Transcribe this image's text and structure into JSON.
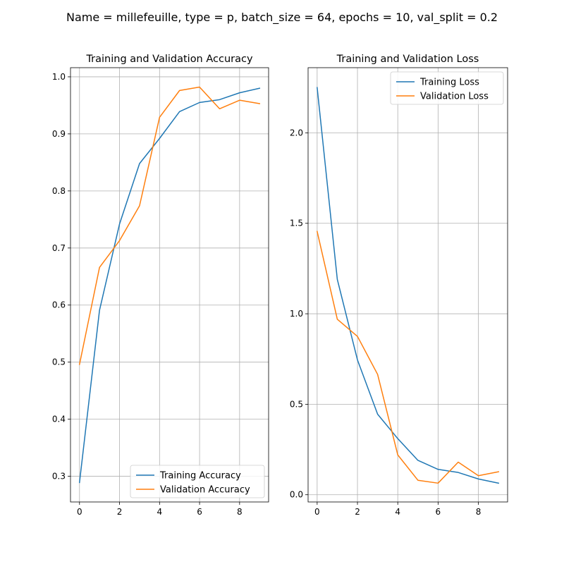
{
  "figure": {
    "suptitle": "Name = millefeuille, type = p, batch_size = 64, epochs = 10, val_split = 0.2"
  },
  "colors": {
    "training": "#1f77b4",
    "validation": "#ff7f0e",
    "grid": "#b0b0b0",
    "axes": "#000000"
  },
  "chart_data": [
    {
      "type": "line",
      "title": "Training and Validation Accuracy",
      "xlabel": "",
      "ylabel": "",
      "x": [
        0,
        1,
        2,
        3,
        4,
        5,
        6,
        7,
        8,
        9
      ],
      "xlim": [
        -0.45,
        9.45
      ],
      "ylim": [
        0.255,
        1.016
      ],
      "xticks": [
        0,
        2,
        4,
        6,
        8
      ],
      "yticks": [
        0.3,
        0.4,
        0.5,
        0.6,
        0.7,
        0.8,
        0.9,
        1.0
      ],
      "ytick_labels": [
        "0.3",
        "0.4",
        "0.5",
        "0.6",
        "0.7",
        "0.8",
        "0.9",
        "1.0"
      ],
      "grid": true,
      "legend_position": "lower-right",
      "series": [
        {
          "name": "Training Accuracy",
          "color": "#1f77b4",
          "values": [
            0.289,
            0.591,
            0.742,
            0.848,
            0.892,
            0.939,
            0.955,
            0.96,
            0.972,
            0.98
          ]
        },
        {
          "name": "Validation Accuracy",
          "color": "#ff7f0e",
          "values": [
            0.496,
            0.666,
            0.713,
            0.774,
            0.929,
            0.976,
            0.982,
            0.944,
            0.959,
            0.953
          ]
        }
      ]
    },
    {
      "type": "line",
      "title": "Training and Validation Loss",
      "xlabel": "",
      "ylabel": "",
      "x": [
        0,
        1,
        2,
        3,
        4,
        5,
        6,
        7,
        8,
        9
      ],
      "xlim": [
        -0.45,
        9.45
      ],
      "ylim": [
        -0.04,
        2.36
      ],
      "xticks": [
        0,
        2,
        4,
        6,
        8
      ],
      "yticks": [
        0.0,
        0.5,
        1.0,
        1.5,
        2.0
      ],
      "ytick_labels": [
        "0.0",
        "0.5",
        "1.0",
        "1.5",
        "2.0"
      ],
      "grid": true,
      "legend_position": "top-right",
      "series": [
        {
          "name": "Training Loss",
          "color": "#1f77b4",
          "values": [
            2.25,
            1.19,
            0.745,
            0.445,
            0.31,
            0.19,
            0.14,
            0.123,
            0.087,
            0.064
          ]
        },
        {
          "name": "Validation Loss",
          "color": "#ff7f0e",
          "values": [
            1.455,
            0.97,
            0.875,
            0.665,
            0.22,
            0.08,
            0.064,
            0.18,
            0.105,
            0.127
          ]
        }
      ]
    }
  ]
}
